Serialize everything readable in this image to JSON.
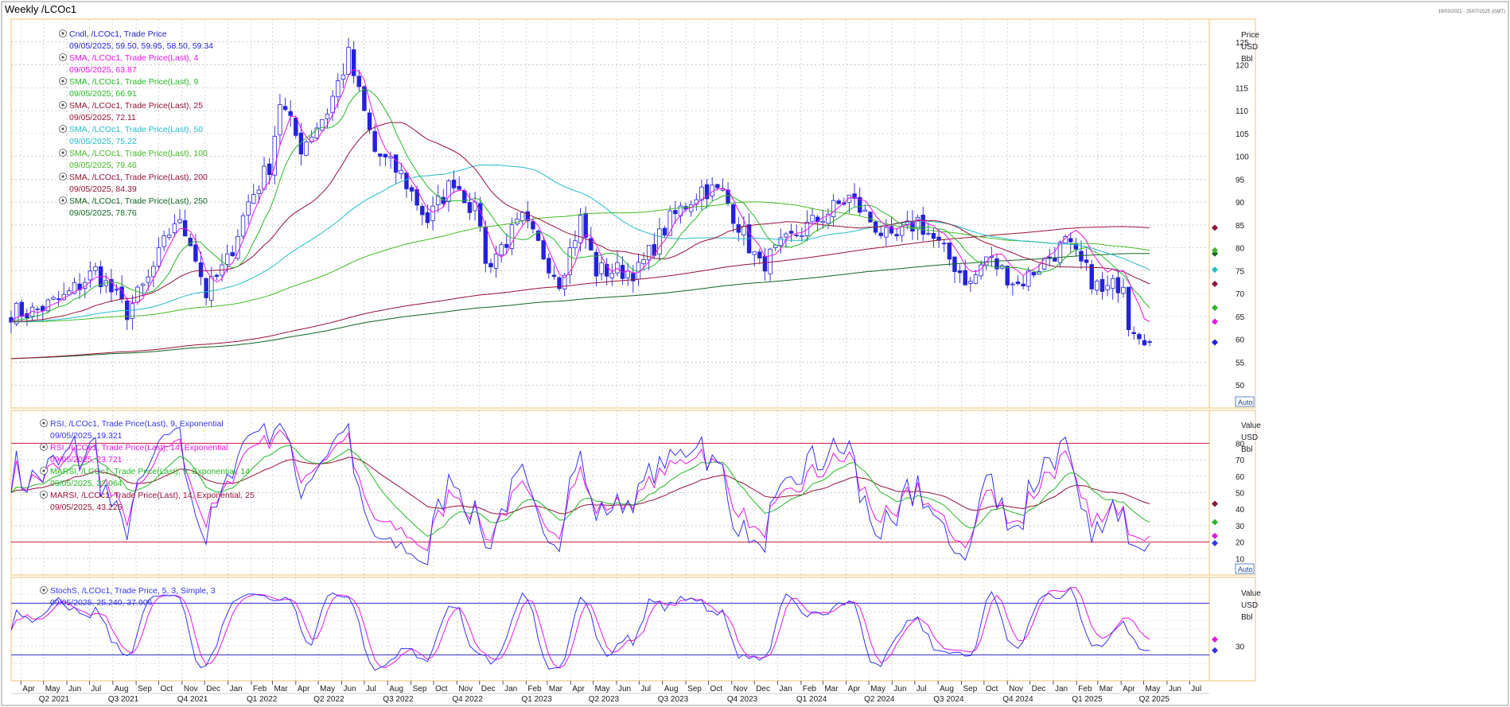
{
  "window": {
    "title": "Weekly /LCOc1",
    "date_range": "19/03/2021 - 25/07/2025 (GMT)"
  },
  "colors": {
    "candle": "#2222dd",
    "sma4": "#ee11ee",
    "sma9": "#22bb22",
    "sma25": "#991133",
    "sma50": "#22bbcc",
    "sma100": "#44bb22",
    "sma200": "#991133",
    "sma250": "#116622",
    "rsi9": "#3333ff",
    "rsi14": "#ee11ee",
    "marsi9": "#22bb22",
    "marsi14": "#991133",
    "stoch_k": "#3333ff",
    "stoch_d": "#ee11ee",
    "level_line": "#cc3355"
  },
  "icons": {
    "legend_toggle": "circle-toggle-icon",
    "price_marker": "diamond-marker-icon"
  },
  "price_panel": {
    "legend": [
      {
        "name": "Cndl, /LCOc1, Trade Price",
        "value": "09/05/2025, 59.50, 59.95, 58.50, 59.34",
        "color_key": "candle"
      },
      {
        "name": "SMA, /LCOc1, Trade Price(Last), 4",
        "value": "09/05/2025, 63.87",
        "color_key": "sma4"
      },
      {
        "name": "SMA, /LCOc1, Trade Price(Last), 9",
        "value": "09/05/2025, 66.91",
        "color_key": "sma9"
      },
      {
        "name": "SMA, /LCOc1, Trade Price(Last), 25",
        "value": "09/05/2025, 72.11",
        "color_key": "sma25"
      },
      {
        "name": "SMA, /LCOc1, Trade Price(Last), 50",
        "value": "09/05/2025, 75.22",
        "color_key": "sma50"
      },
      {
        "name": "SMA, /LCOc1, Trade Price(Last), 100",
        "value": "09/05/2025, 79.46",
        "color_key": "sma100"
      },
      {
        "name": "SMA, /LCOc1, Trade Price(Last), 200",
        "value": "09/05/2025, 84.39",
        "color_key": "sma200"
      },
      {
        "name": "SMA, /LCOc1, Trade Price(Last), 250",
        "value": "09/05/2025, 78.76",
        "color_key": "sma250"
      }
    ],
    "axis_header": [
      "Price",
      "USD",
      "Bbl"
    ],
    "auto_label": "Auto"
  },
  "rsi_panel": {
    "legend": [
      {
        "name": "RSI, /LCOc1, Trade Price(Last), 9, Exponential",
        "value": "09/05/2025, 19.321",
        "color_key": "rsi9"
      },
      {
        "name": "RSI, /LCOc1, Trade Price(Last), 14, Exponential",
        "value": "09/05/2025, 23.721",
        "color_key": "rsi14"
      },
      {
        "name": "MARSI, /LCOc1, Trade Price(Last), 9, Exponential, 14",
        "value": "09/05/2025, 32.064",
        "color_key": "marsi9"
      },
      {
        "name": "MARSI, /LCOc1, Trade Price(Last), 14, Exponential, 25",
        "value": "09/05/2025, 43.225",
        "color_key": "marsi14"
      }
    ],
    "axis_header": [
      "Value",
      "USD",
      "Bbl"
    ],
    "auto_label": "Auto"
  },
  "stoch_panel": {
    "legend": [
      {
        "name": "StochS, /LCOc1, Trade Price, 5, 3, Simple, 3",
        "value": "09/05/2025, 25.240, 37.906",
        "color_key": "stoch_k"
      }
    ],
    "axis_header": [
      "Value",
      "USD",
      "Bbl"
    ]
  },
  "chart_data": [
    {
      "type": "candlestick",
      "panel": "price",
      "ylim": [
        45,
        130
      ],
      "yticks": [
        50,
        55,
        60,
        65,
        70,
        75,
        80,
        85,
        90,
        95,
        100,
        105,
        110,
        115,
        120,
        125
      ],
      "x_start": "2021-03-19",
      "x_end": "2025-05-09",
      "x_axis_end": "2025-07-25",
      "close_anchors": [
        [
          "2021-03-19",
          66
        ],
        [
          "2021-04-16",
          66
        ],
        [
          "2021-05-28",
          69
        ],
        [
          "2021-07-09",
          75
        ],
        [
          "2021-08-20",
          66
        ],
        [
          "2021-09-17",
          73
        ],
        [
          "2021-10-22",
          86
        ],
        [
          "2021-11-12",
          82
        ],
        [
          "2021-12-03",
          70
        ],
        [
          "2021-12-31",
          77
        ],
        [
          "2022-01-28",
          90
        ],
        [
          "2022-02-25",
          98
        ],
        [
          "2022-03-11",
          112
        ],
        [
          "2022-04-08",
          102
        ],
        [
          "2022-05-13",
          110
        ],
        [
          "2022-06-10",
          122
        ],
        [
          "2022-07-15",
          101
        ],
        [
          "2022-08-19",
          96
        ],
        [
          "2022-09-23",
          86
        ],
        [
          "2022-10-28",
          95
        ],
        [
          "2022-12-02",
          86
        ],
        [
          "2022-12-09",
          76
        ],
        [
          "2023-01-27",
          86
        ],
        [
          "2023-03-17",
          73
        ],
        [
          "2023-04-14",
          86
        ],
        [
          "2023-05-05",
          75
        ],
        [
          "2023-06-30",
          75
        ],
        [
          "2023-08-11",
          86
        ],
        [
          "2023-09-22",
          93
        ],
        [
          "2023-10-20",
          92
        ],
        [
          "2023-12-08",
          76
        ],
        [
          "2024-01-26",
          83
        ],
        [
          "2024-04-05",
          91
        ],
        [
          "2024-05-31",
          81
        ],
        [
          "2024-07-05",
          86
        ],
        [
          "2024-09-13",
          72
        ],
        [
          "2024-10-04",
          78
        ],
        [
          "2024-11-15",
          72
        ],
        [
          "2025-01-17",
          81
        ],
        [
          "2025-03-07",
          70
        ],
        [
          "2025-04-04",
          73
        ],
        [
          "2025-04-11",
          64
        ],
        [
          "2025-05-02",
          61
        ],
        [
          "2025-05-09",
          59.34
        ]
      ],
      "last_candle": {
        "date": "2025-05-09",
        "open": 59.5,
        "high": 59.95,
        "low": 58.5,
        "close": 59.34
      },
      "sma_last": {
        "4": 63.87,
        "9": 66.91,
        "25": 72.11,
        "50": 75.22,
        "100": 79.46,
        "200": 84.39,
        "250": 78.76
      }
    },
    {
      "type": "line",
      "panel": "rsi",
      "ylim": [
        0,
        100
      ],
      "yticks": [
        10,
        20,
        30,
        40,
        50,
        60,
        70,
        80
      ],
      "levels": [
        20,
        80
      ],
      "last_values": {
        "rsi9": 19.321,
        "rsi14": 23.721,
        "marsi9": 32.064,
        "marsi14": 43.225
      }
    },
    {
      "type": "line",
      "panel": "stochastic",
      "ylim": [
        -10,
        110
      ],
      "yticks": [
        30
      ],
      "levels": [
        20,
        80
      ],
      "last_values": {
        "k": 25.24,
        "d": 37.906
      }
    }
  ],
  "x_axis": {
    "months": [
      {
        "label": "Apr",
        "date": "2021-04-01"
      },
      {
        "label": "May",
        "date": "2021-05-01"
      },
      {
        "label": "Jun",
        "date": "2021-06-01"
      },
      {
        "label": "Jul",
        "date": "2021-07-01"
      },
      {
        "label": "Aug",
        "date": "2021-08-01"
      },
      {
        "label": "Sep",
        "date": "2021-09-01"
      },
      {
        "label": "Oct",
        "date": "2021-10-01"
      },
      {
        "label": "Nov",
        "date": "2021-11-01"
      },
      {
        "label": "Dec",
        "date": "2021-12-01"
      },
      {
        "label": "Jan",
        "date": "2022-01-01"
      },
      {
        "label": "Feb",
        "date": "2022-02-01"
      },
      {
        "label": "Mar",
        "date": "2022-03-01"
      },
      {
        "label": "Apr",
        "date": "2022-04-01"
      },
      {
        "label": "May",
        "date": "2022-05-01"
      },
      {
        "label": "Jun",
        "date": "2022-06-01"
      },
      {
        "label": "Jul",
        "date": "2022-07-01"
      },
      {
        "label": "Aug",
        "date": "2022-08-01"
      },
      {
        "label": "Sep",
        "date": "2022-09-01"
      },
      {
        "label": "Oct",
        "date": "2022-10-01"
      },
      {
        "label": "Nov",
        "date": "2022-11-01"
      },
      {
        "label": "Dec",
        "date": "2022-12-01"
      },
      {
        "label": "Jan",
        "date": "2023-01-01"
      },
      {
        "label": "Feb",
        "date": "2023-02-01"
      },
      {
        "label": "Mar",
        "date": "2023-03-01"
      },
      {
        "label": "Apr",
        "date": "2023-04-01"
      },
      {
        "label": "May",
        "date": "2023-05-01"
      },
      {
        "label": "Jun",
        "date": "2023-06-01"
      },
      {
        "label": "Jul",
        "date": "2023-07-01"
      },
      {
        "label": "Aug",
        "date": "2023-08-01"
      },
      {
        "label": "Sep",
        "date": "2023-09-01"
      },
      {
        "label": "Oct",
        "date": "2023-10-01"
      },
      {
        "label": "Nov",
        "date": "2023-11-01"
      },
      {
        "label": "Dec",
        "date": "2023-12-01"
      },
      {
        "label": "Jan",
        "date": "2024-01-01"
      },
      {
        "label": "Feb",
        "date": "2024-02-01"
      },
      {
        "label": "Mar",
        "date": "2024-03-01"
      },
      {
        "label": "Apr",
        "date": "2024-04-01"
      },
      {
        "label": "May",
        "date": "2024-05-01"
      },
      {
        "label": "Jun",
        "date": "2024-06-01"
      },
      {
        "label": "Jul",
        "date": "2024-07-01"
      },
      {
        "label": "Aug",
        "date": "2024-08-01"
      },
      {
        "label": "Sep",
        "date": "2024-09-01"
      },
      {
        "label": "Oct",
        "date": "2024-10-01"
      },
      {
        "label": "Nov",
        "date": "2024-11-01"
      },
      {
        "label": "Dec",
        "date": "2024-12-01"
      },
      {
        "label": "Jan",
        "date": "2025-01-01"
      },
      {
        "label": "Feb",
        "date": "2025-02-01"
      },
      {
        "label": "Mar",
        "date": "2025-03-01"
      },
      {
        "label": "Apr",
        "date": "2025-04-01"
      },
      {
        "label": "May",
        "date": "2025-05-01"
      },
      {
        "label": "Jun",
        "date": "2025-06-01"
      },
      {
        "label": "Jul",
        "date": "2025-07-01"
      }
    ],
    "quarters": [
      {
        "label": "Q2 2021",
        "date": "2021-05-15"
      },
      {
        "label": "Q3 2021",
        "date": "2021-08-15"
      },
      {
        "label": "Q4 2021",
        "date": "2021-11-15"
      },
      {
        "label": "Q1 2022",
        "date": "2022-02-15"
      },
      {
        "label": "Q2 2022",
        "date": "2022-05-15"
      },
      {
        "label": "Q3 2022",
        "date": "2022-08-15"
      },
      {
        "label": "Q4 2022",
        "date": "2022-11-15"
      },
      {
        "label": "Q1 2023",
        "date": "2023-02-15"
      },
      {
        "label": "Q2 2023",
        "date": "2023-05-15"
      },
      {
        "label": "Q3 2023",
        "date": "2023-08-15"
      },
      {
        "label": "Q4 2023",
        "date": "2023-11-15"
      },
      {
        "label": "Q1 2024",
        "date": "2024-02-15"
      },
      {
        "label": "Q2 2024",
        "date": "2024-05-15"
      },
      {
        "label": "Q3 2024",
        "date": "2024-08-15"
      },
      {
        "label": "Q4 2024",
        "date": "2024-11-15"
      },
      {
        "label": "Q1 2025",
        "date": "2025-02-15"
      },
      {
        "label": "Q2 2025",
        "date": "2025-05-15"
      }
    ]
  }
}
